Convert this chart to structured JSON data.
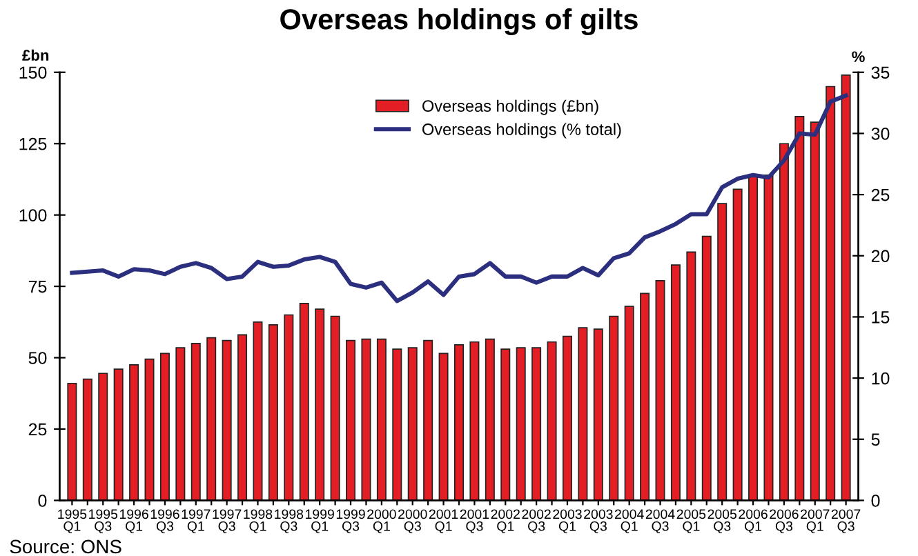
{
  "chart_data": {
    "type": "bar",
    "title": "Overseas holdings of gilts",
    "categories": [
      "1995\nQ1",
      null,
      "1995\nQ3",
      null,
      "1996\nQ1",
      null,
      "1996\nQ3",
      null,
      "1997\nQ1",
      null,
      "1997\nQ3",
      null,
      "1998\nQ1",
      null,
      "1998\nQ3",
      null,
      "1999\nQ1",
      null,
      "1999\nQ3",
      null,
      "2000\nQ1",
      null,
      "2000\nQ3",
      null,
      "2001\nQ1",
      null,
      "2001\nQ3",
      null,
      "2002\nQ1",
      null,
      "2002\nQ3",
      null,
      "2003\nQ1",
      null,
      "2003\nQ3",
      null,
      "2004\nQ1",
      null,
      "2004\nQ3",
      null,
      "2005\nQ1",
      null,
      "2005\nQ3",
      null,
      "2006\nQ1",
      null,
      "2006\nQ3",
      null,
      "2007\nQ1",
      null,
      "2007\nQ3"
    ],
    "series": [
      {
        "name": "Overseas holdings (£bn)",
        "color": "#e31e24",
        "values": [
          41,
          42.5,
          44.5,
          46,
          47.5,
          49.5,
          51.5,
          53.5,
          55,
          57,
          56,
          58,
          62.5,
          61.5,
          65,
          69,
          67,
          64.5,
          56,
          56.5,
          56.5,
          53,
          53.5,
          56,
          51.5,
          54.5,
          55.5,
          56.5,
          53,
          53.5,
          53.5,
          55.5,
          57.5,
          60.5,
          60,
          64.5,
          68,
          72.5,
          77,
          82.5,
          87,
          92.5,
          104,
          109,
          114,
          114,
          125,
          134.5,
          132.5,
          145,
          149
        ]
      },
      {
        "name": "Overseas holdings (% total)",
        "type": "line",
        "axis": "y2",
        "color": "#2b2f7e",
        "values": [
          18.6,
          18.7,
          18.8,
          18.3,
          18.9,
          18.8,
          18.5,
          19.1,
          19.4,
          19,
          18.1,
          18.3,
          19.5,
          19.1,
          19.2,
          19.7,
          19.9,
          19.5,
          17.7,
          17.4,
          17.8,
          16.3,
          17,
          17.9,
          16.8,
          18.3,
          18.5,
          19.4,
          18.3,
          18.3,
          17.8,
          18.3,
          18.3,
          19,
          18.4,
          19.8,
          20.2,
          21.5,
          22,
          22.6,
          23.4,
          23.4,
          25.6,
          26.3,
          26.6,
          26.4,
          27.8,
          30,
          29.9,
          32.6,
          33.1
        ]
      }
    ],
    "ylabel": "£bn",
    "y2label": "%",
    "ylim": [
      0,
      150
    ],
    "yticks": [
      0,
      25,
      50,
      75,
      100,
      125,
      150
    ],
    "y2lim": [
      0,
      35
    ],
    "y2ticks": [
      0,
      5,
      10,
      15,
      20,
      25,
      30,
      35
    ],
    "legend": "top",
    "grid": false,
    "marker": "none",
    "line_style": "solid",
    "annotations": [
      "Source: ONS"
    ]
  }
}
